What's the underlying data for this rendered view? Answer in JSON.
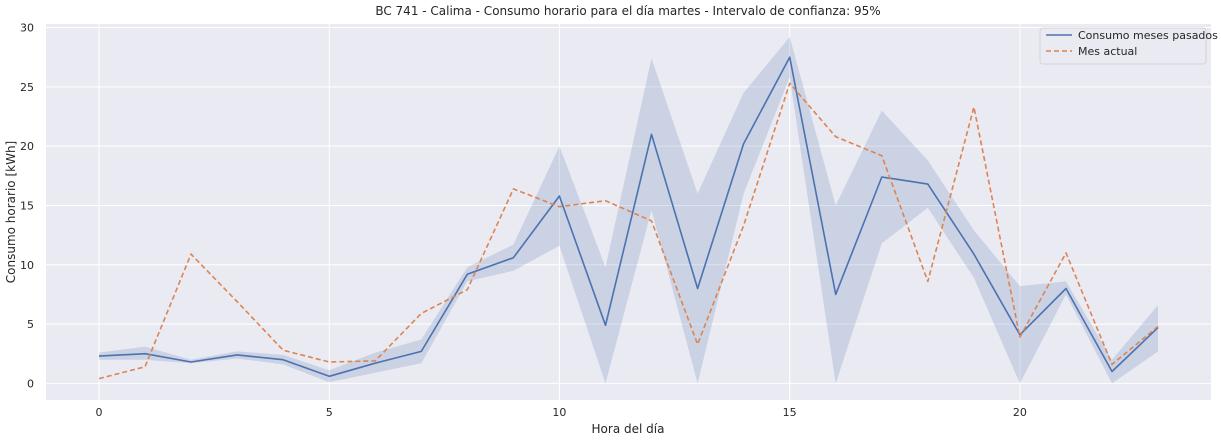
{
  "chart_data": {
    "type": "line",
    "title": "BC 741 - Calima - Consumo horario para el día martes - Intervalo de confianza: 95%",
    "xlabel": "Hora del día",
    "ylabel": "Consumo horario [kWh]",
    "xlim": [
      -1.15,
      24.15
    ],
    "ylim": [
      -1.4,
      30.3
    ],
    "xticks": [
      0,
      5,
      10,
      15,
      20
    ],
    "yticks": [
      0,
      5,
      10,
      15,
      20,
      25,
      30
    ],
    "grid": true,
    "legend_position": "top-right",
    "x": [
      0,
      1,
      2,
      3,
      4,
      5,
      6,
      7,
      8,
      9,
      10,
      11,
      12,
      13,
      14,
      15,
      16,
      17,
      18,
      19,
      20,
      21,
      22,
      23
    ],
    "series": [
      {
        "name": "Consumo meses pasados",
        "style": "solid",
        "color": "#4c72b0",
        "values": [
          2.3,
          2.5,
          1.8,
          2.4,
          2.0,
          0.6,
          1.7,
          2.7,
          9.2,
          10.6,
          15.8,
          4.9,
          21.0,
          8.0,
          20.2,
          27.5,
          7.5,
          17.4,
          16.8,
          10.9,
          4.1,
          8.0,
          1.0,
          4.7
        ],
        "ci_lower": [
          2.0,
          2.0,
          1.7,
          2.1,
          1.6,
          0.1,
          0.9,
          1.7,
          8.6,
          9.5,
          11.6,
          0.0,
          14.6,
          0.0,
          16.0,
          25.8,
          0.0,
          11.8,
          14.8,
          8.9,
          0.0,
          7.5,
          0.0,
          2.7
        ],
        "ci_upper": [
          2.6,
          3.1,
          2.0,
          2.7,
          2.4,
          1.1,
          2.6,
          3.7,
          9.8,
          11.7,
          20.0,
          9.8,
          27.4,
          16.0,
          24.5,
          29.2,
          15.0,
          23.0,
          18.8,
          12.9,
          8.2,
          8.6,
          2.0,
          6.6
        ]
      },
      {
        "name": "Mes actual",
        "style": "dashed",
        "color": "#dd8452",
        "values": [
          0.4,
          1.4,
          10.9,
          6.9,
          2.8,
          1.8,
          1.9,
          5.9,
          7.9,
          16.4,
          14.9,
          15.4,
          13.7,
          3.3,
          13.3,
          25.3,
          20.8,
          19.2,
          8.6,
          23.3,
          3.9,
          11.0,
          1.6,
          4.8
        ]
      }
    ],
    "colors": {
      "background": "#eaeaf2",
      "grid": "#ffffff",
      "ci_fill": "#4c72b0"
    }
  }
}
